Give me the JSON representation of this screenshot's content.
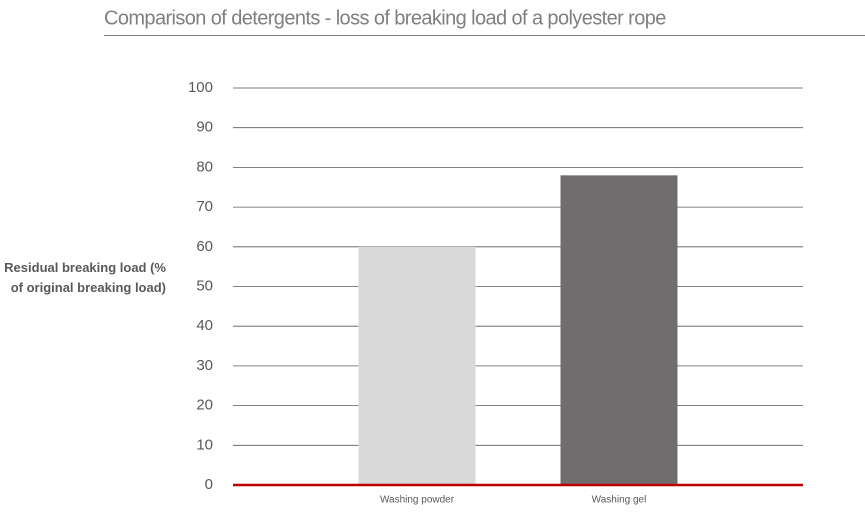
{
  "chart_data": {
    "type": "bar",
    "title": "Comparison of detergents - loss of breaking load of a polyester rope",
    "y_label": "Residual breaking load (% of original breaking load)",
    "categories": [
      "Washing powder",
      "Washing gel"
    ],
    "values": [
      60,
      78
    ],
    "colors": [
      "#d9d9d9",
      "#6f6d6d"
    ],
    "ylim": [
      0,
      100
    ],
    "yticks": [
      0,
      10,
      20,
      30,
      40,
      50,
      60,
      70,
      80,
      90,
      100
    ],
    "grid": true,
    "baseline_color": "#c00000"
  }
}
